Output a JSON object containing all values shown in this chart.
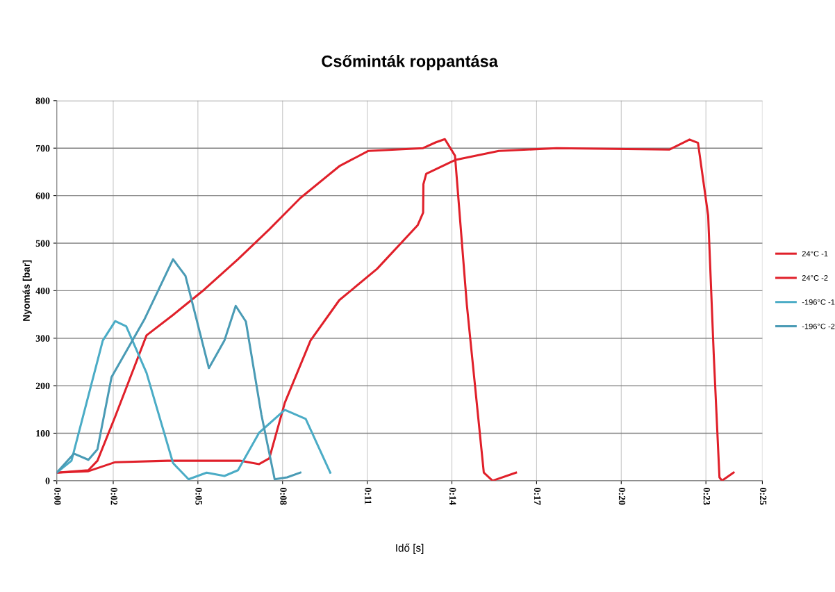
{
  "chart_data": {
    "type": "line",
    "title": "Csőminták roppantása",
    "xlabel": "Idő [s]",
    "ylabel": "Nyomás [bar]",
    "xlim": [
      0,
      25
    ],
    "ylim": [
      0,
      800
    ],
    "xticks": [
      {
        "value": 0,
        "label": "0:00"
      },
      {
        "value": 2,
        "label": "0:02"
      },
      {
        "value": 5,
        "label": "0:05"
      },
      {
        "value": 8,
        "label": "0:08"
      },
      {
        "value": 11,
        "label": "0:11"
      },
      {
        "value": 14,
        "label": "0:14"
      },
      {
        "value": 17,
        "label": "0:17"
      },
      {
        "value": 20,
        "label": "0:20"
      },
      {
        "value": 23,
        "label": "0:23"
      },
      {
        "value": 25,
        "label": "0:25"
      }
    ],
    "yticks": [
      0,
      100,
      200,
      300,
      400,
      500,
      600,
      700,
      800
    ],
    "grid": true,
    "legend": "right",
    "marker": "none",
    "line_style": "solid",
    "series": [
      {
        "name": "24°C -1",
        "color": "#e0202a",
        "x": [
          0,
          1.12,
          1.44,
          2.07,
          3.18,
          4.12,
          5.22,
          6.42,
          7.53,
          8.63,
          10.01,
          11.03,
          12.98,
          13.42,
          13.75,
          14.11,
          14.53,
          15.13,
          15.44,
          16.27
        ],
        "values": [
          17,
          22,
          42,
          135,
          306,
          349,
          402,
          466,
          529,
          595,
          662,
          694,
          700,
          712,
          719,
          684,
          370,
          17,
          0,
          17
        ]
      },
      {
        "name": "24°C -2",
        "color": "#e0202a",
        "x": [
          0,
          1.12,
          2.07,
          3.92,
          6.49,
          7.17,
          7.53,
          8.08,
          8.99,
          10.01,
          11.35,
          12.79,
          12.98,
          12.99,
          13.09,
          14.11,
          15.66,
          17.71,
          21.7,
          22.42,
          22.72,
          23.08,
          23.28,
          23.48,
          23.57,
          23.98
        ],
        "values": [
          17,
          20,
          39,
          42,
          42,
          35,
          47,
          164,
          295,
          380,
          446,
          538,
          564,
          624,
          646,
          675,
          694,
          700,
          697,
          718,
          711,
          558,
          262,
          7,
          0,
          17
        ]
      },
      {
        "name": "-196°C -1",
        "color": "#4bacc6",
        "x": [
          0,
          0.52,
          1.2,
          1.63,
          2.07,
          2.46,
          3.18,
          4.12,
          4.67,
          5.31,
          5.94,
          6.42,
          7.17,
          8.08,
          8.82,
          9.69
        ],
        "values": [
          17,
          42,
          197,
          295,
          336,
          325,
          227,
          37,
          3,
          17,
          10,
          22,
          101,
          149,
          130,
          17
        ]
      },
      {
        "name": "-196°C -2",
        "color": "#4a9bb5",
        "x": [
          0,
          0.61,
          1.12,
          1.44,
          1.94,
          3.1,
          4.12,
          4.56,
          5.39,
          5.94,
          6.34,
          6.7,
          7.25,
          7.72,
          8.16,
          8.63
        ],
        "values": [
          17,
          57,
          44,
          66,
          218,
          339,
          466,
          431,
          237,
          295,
          368,
          335,
          139,
          3,
          7,
          17
        ]
      }
    ]
  }
}
